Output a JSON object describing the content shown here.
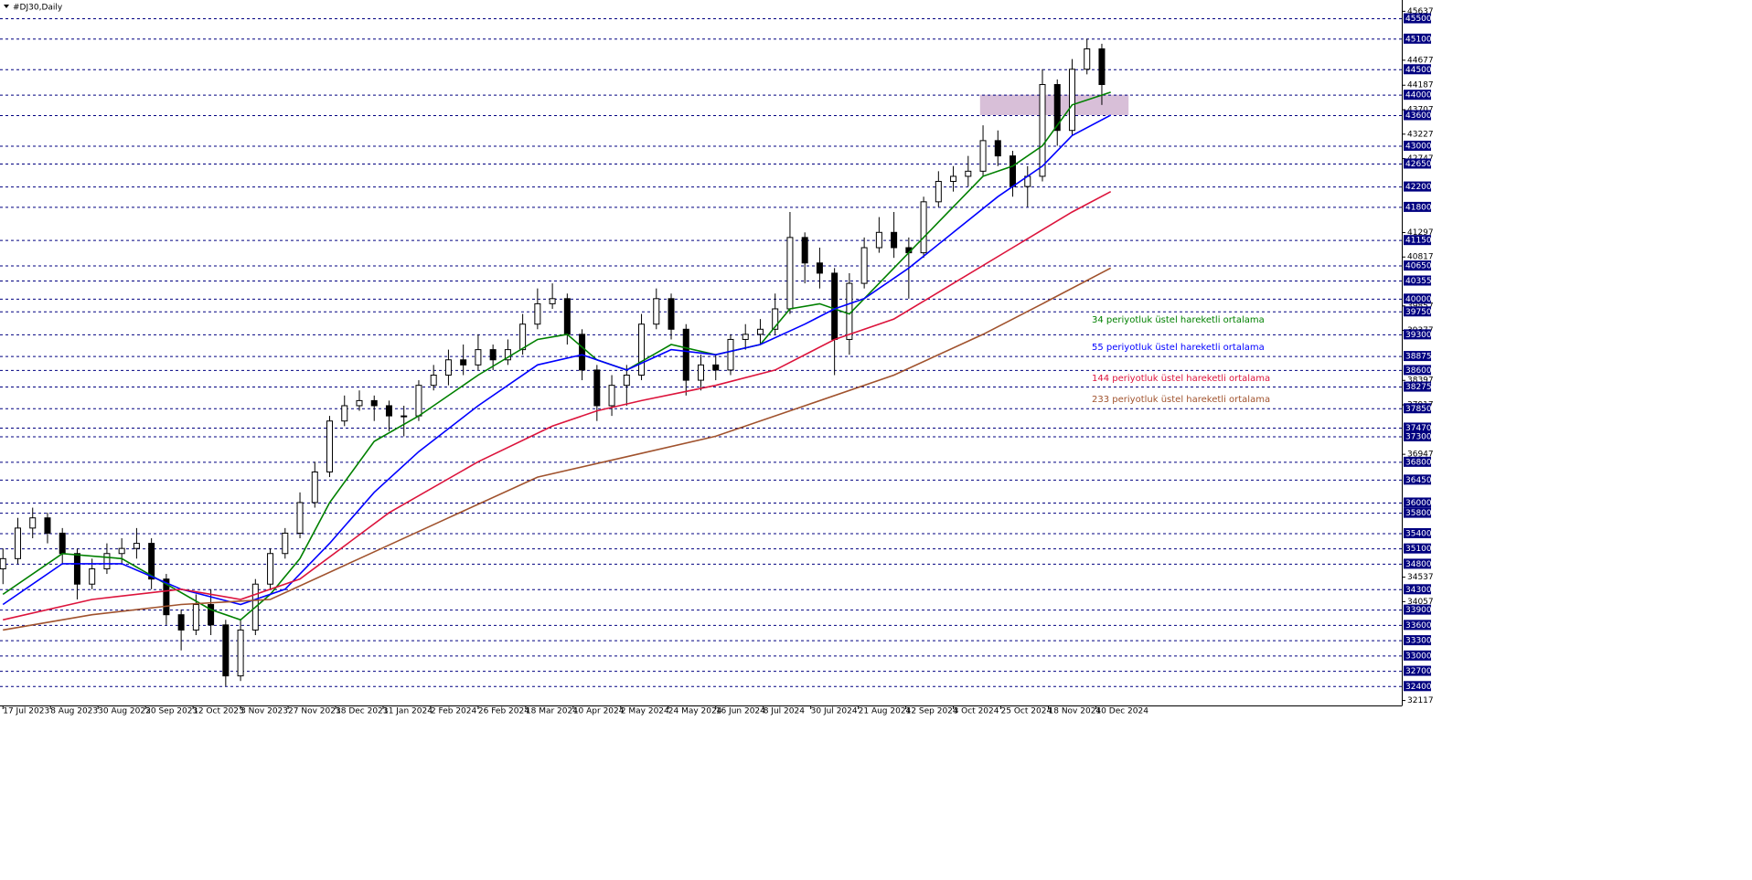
{
  "chart_data": {
    "type": "candlestick",
    "title": "#DJ30,Daily",
    "x": [
      0,
      5,
      10,
      15,
      20,
      25,
      30,
      35,
      40,
      45,
      50,
      55,
      60,
      65,
      70,
      75,
      80,
      85,
      90,
      95,
      100,
      105,
      110,
      115,
      120,
      125,
      130,
      135,
      140,
      145,
      150,
      155,
      160,
      165,
      170,
      175,
      180,
      185,
      190,
      195,
      200,
      205,
      210,
      215,
      220,
      225,
      230,
      235,
      240,
      245,
      250,
      255,
      260,
      265,
      270,
      275,
      280,
      285,
      290,
      295,
      300,
      305,
      310,
      315,
      320,
      325,
      330,
      335,
      340,
      345,
      350,
      355,
      360,
      365,
      370
    ],
    "open": [
      34700,
      34900,
      35500,
      35700,
      35400,
      35000,
      34400,
      34700,
      35000,
      35100,
      35200,
      34500,
      33800,
      33500,
      34000,
      33600,
      32600,
      33500,
      34400,
      35000,
      35400,
      36000,
      36600,
      37600,
      37900,
      38000,
      37900,
      37700,
      37700,
      38300,
      38500,
      38800,
      38700,
      39000,
      38800,
      39000,
      39500,
      39900,
      40000,
      39300,
      38600,
      37900,
      38300,
      38500,
      39500,
      40000,
      39400,
      38400,
      38700,
      38600,
      39200,
      39300,
      39400,
      39800,
      41200,
      40700,
      40500,
      39200,
      40300,
      41000,
      41300,
      41000,
      40900,
      41900,
      42300,
      42400,
      42500,
      43100,
      42800,
      42200,
      42400,
      44200,
      43300,
      44500,
      44900
    ],
    "high": [
      35100,
      35700,
      35900,
      35800,
      35500,
      35100,
      34900,
      35200,
      35300,
      35500,
      35300,
      34600,
      33900,
      34200,
      34300,
      33700,
      33700,
      34500,
      35100,
      35500,
      36200,
      36800,
      37700,
      38100,
      38200,
      38100,
      38000,
      37900,
      38400,
      38700,
      39000,
      39100,
      39300,
      39100,
      39200,
      39700,
      40200,
      40300,
      40100,
      39400,
      38700,
      38500,
      38700,
      39700,
      40200,
      40100,
      39500,
      38900,
      38900,
      39300,
      39500,
      39600,
      40100,
      41700,
      41300,
      41000,
      40600,
      40500,
      41200,
      41600,
      41700,
      41200,
      42000,
      42500,
      42600,
      42800,
      43400,
      43300,
      42900,
      42600,
      44500,
      44300,
      44700,
      45100,
      45000
    ],
    "low": [
      34400,
      34800,
      35300,
      35200,
      34800,
      34100,
      34300,
      34600,
      34800,
      34900,
      34300,
      33600,
      33100,
      33400,
      33400,
      32400,
      32500,
      33400,
      34300,
      34900,
      35300,
      35900,
      36500,
      37500,
      37800,
      37600,
      37400,
      37300,
      37600,
      38200,
      38300,
      38500,
      38600,
      38600,
      38700,
      38900,
      39400,
      39800,
      39100,
      38400,
      37600,
      37700,
      37900,
      38400,
      39400,
      39200,
      38100,
      38200,
      38400,
      38500,
      39000,
      39100,
      39300,
      39700,
      40300,
      40200,
      38500,
      38900,
      40200,
      40900,
      40800,
      40000,
      40800,
      41800,
      42100,
      42200,
      42400,
      42600,
      42000,
      41800,
      42300,
      43000,
      43200,
      44400,
      43800
    ],
    "close": [
      34900,
      35500,
      35700,
      35400,
      35000,
      34400,
      34700,
      35000,
      35100,
      35200,
      34500,
      33800,
      33500,
      34000,
      33600,
      32600,
      33500,
      34400,
      35000,
      35400,
      36000,
      36600,
      37600,
      37900,
      38000,
      37900,
      37700,
      37700,
      38300,
      38500,
      38800,
      38700,
      39000,
      38800,
      39000,
      39500,
      39900,
      40000,
      39300,
      38600,
      37900,
      38300,
      38500,
      39500,
      40000,
      39400,
      38400,
      38700,
      38600,
      39200,
      39300,
      39400,
      39800,
      41200,
      40700,
      40500,
      39200,
      40300,
      41000,
      41300,
      41000,
      40900,
      41900,
      42300,
      42400,
      42500,
      43100,
      42800,
      42200,
      42400,
      44200,
      43300,
      44500,
      44900,
      44200
    ],
    "candle_color": "#000000",
    "lines": [
      {
        "name": "34 periyotluk üstel hareketli ortalama",
        "color": "#008000",
        "x": [
          0,
          20,
          40,
          55,
          70,
          80,
          90,
          100,
          110,
          125,
          140,
          160,
          180,
          190,
          200,
          210,
          225,
          240,
          255,
          265,
          275,
          285,
          300,
          315,
          330,
          340,
          350,
          360,
          373
        ],
        "values": [
          34200,
          35000,
          34900,
          34400,
          33900,
          33700,
          34200,
          34900,
          36000,
          37200,
          37700,
          38500,
          39200,
          39300,
          38800,
          38600,
          39100,
          38900,
          39100,
          39800,
          39900,
          39700,
          40600,
          41500,
          42400,
          42600,
          43000,
          43800,
          44050
        ]
      },
      {
        "name": "55 periyotluk üstel hareketli ortalama",
        "color": "#0000ff",
        "x": [
          0,
          20,
          40,
          60,
          80,
          95,
          110,
          125,
          140,
          160,
          180,
          195,
          210,
          225,
          240,
          255,
          270,
          280,
          290,
          305,
          320,
          335,
          350,
          360,
          373
        ],
        "values": [
          34000,
          34800,
          34800,
          34300,
          34000,
          34300,
          35200,
          36200,
          37000,
          37900,
          38700,
          38900,
          38600,
          39000,
          38900,
          39100,
          39500,
          39800,
          40000,
          40600,
          41300,
          42000,
          42600,
          43200,
          43600
        ]
      },
      {
        "name": "144 periyotluk üstel hareketli ortalama",
        "color": "#dc143c",
        "x": [
          0,
          30,
          60,
          80,
          100,
          130,
          160,
          185,
          200,
          215,
          240,
          260,
          280,
          300,
          320,
          340,
          360,
          373
        ],
        "values": [
          33700,
          34100,
          34300,
          34100,
          34500,
          35800,
          36800,
          37500,
          37800,
          38000,
          38300,
          38600,
          39200,
          39600,
          40300,
          41000,
          41700,
          42100
        ]
      },
      {
        "name": "233 periyotluk üstel hareketli ortalama",
        "color": "#a0522d",
        "x": [
          0,
          30,
          60,
          90,
          120,
          150,
          180,
          210,
          240,
          270,
          300,
          330,
          350,
          373
        ],
        "values": [
          33500,
          33800,
          34000,
          34100,
          34900,
          35700,
          36500,
          36900,
          37300,
          37900,
          38500,
          39300,
          39900,
          40600
        ]
      }
    ],
    "zone": {
      "x": [
        329,
        379
      ],
      "y": [
        43600,
        44000
      ],
      "color": "#d8bfd8"
    },
    "xlim": [
      -1,
      471
    ],
    "xticks": [
      {
        "value": 0,
        "label": "17 Jul 2023"
      },
      {
        "value": 16,
        "label": "8 Aug 2023"
      },
      {
        "value": 32,
        "label": "30 Aug 2023"
      },
      {
        "value": 48,
        "label": "20 Sep 2023"
      },
      {
        "value": 64,
        "label": "12 Oct 2023"
      },
      {
        "value": 80,
        "label": "3 Nov 2023"
      },
      {
        "value": 96,
        "label": "27 Nov 2023"
      },
      {
        "value": 112,
        "label": "18 Dec 2023"
      },
      {
        "value": 128,
        "label": "11 Jan 2024"
      },
      {
        "value": 144,
        "label": "2 Feb 2024"
      },
      {
        "value": 160,
        "label": "26 Feb 2024"
      },
      {
        "value": 176,
        "label": "18 Mar 2024"
      },
      {
        "value": 192,
        "label": "10 Apr 2024"
      },
      {
        "value": 208,
        "label": "2 May 2024"
      },
      {
        "value": 224,
        "label": "24 May 2024"
      },
      {
        "value": 240,
        "label": "16 Jun 2024"
      },
      {
        "value": 256,
        "label": "8 Jul 2024"
      },
      {
        "value": 272,
        "label": "30 Jul 2024"
      },
      {
        "value": 288,
        "label": "21 Aug 2024"
      },
      {
        "value": 304,
        "label": "12 Sep 2024"
      },
      {
        "value": 320,
        "label": "3 Oct 2024"
      },
      {
        "value": 336,
        "label": "25 Oct 2024"
      },
      {
        "value": 352,
        "label": "18 Nov 2024"
      },
      {
        "value": 368,
        "label": "10 Dec 2024"
      }
    ],
    "ylim": [
      32020,
      45715
    ],
    "yticks": [
      45637,
      44677,
      44187,
      43707,
      43227,
      42747,
      41297,
      40817,
      39857,
      39377,
      38397,
      37917,
      36947,
      34537,
      34057,
      32117
    ],
    "levels": [
      45500,
      45100,
      44500,
      44000,
      43600,
      43000,
      42650,
      42200,
      41800,
      41150,
      40650,
      40355,
      40000,
      39750,
      39300,
      38875,
      38600,
      38275,
      37850,
      37470,
      37300,
      36800,
      36450,
      36000,
      35800,
      35400,
      35100,
      34800,
      34300,
      33900,
      33600,
      33300,
      33000,
      32700,
      32400
    ],
    "level_color": "#000080"
  }
}
